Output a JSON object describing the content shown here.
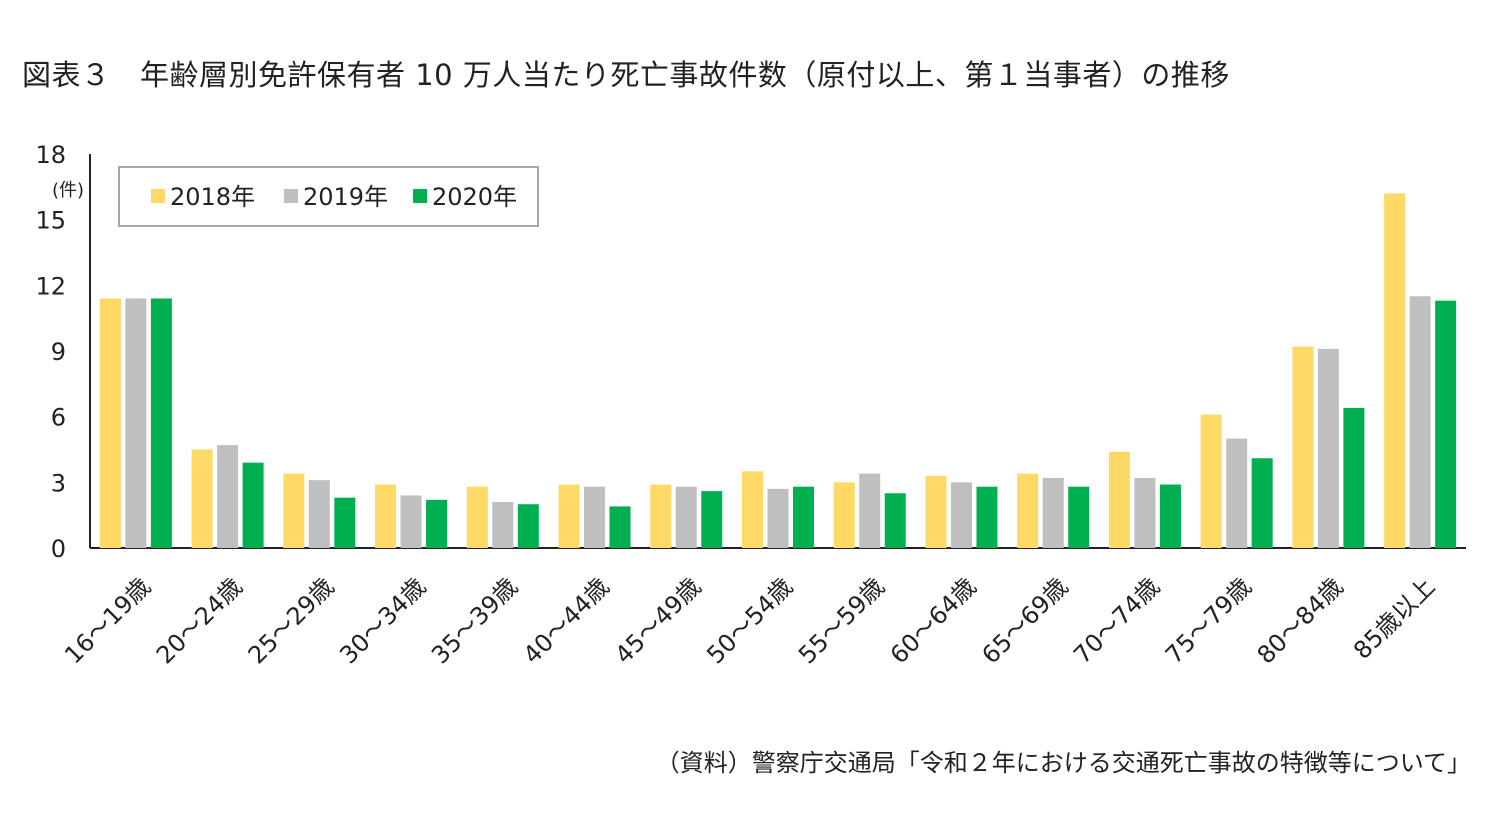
{
  "title": "図表３　年齢層別免許保有者 10 万人当たり死亡事故件数（原付以上、第１当事者）の推移",
  "source": "（資料）警察庁交通局「令和２年における交通死亡事故の特徴等について」",
  "chart_data": {
    "type": "bar",
    "ylabel": "(件)",
    "ylim": [
      0,
      18
    ],
    "yticks": [
      0,
      3,
      6,
      9,
      12,
      15,
      18
    ],
    "grid": false,
    "legend_position": "top-left",
    "categories": [
      "16～19歳",
      "20～24歳",
      "25～29歳",
      "30～34歳",
      "35～39歳",
      "40～44歳",
      "45～49歳",
      "50～54歳",
      "55～59歳",
      "60～64歳",
      "65～69歳",
      "70～74歳",
      "75～79歳",
      "80～84歳",
      "85歳以上"
    ],
    "series": [
      {
        "name": "2018年",
        "color": "#FFD966",
        "values": [
          11.4,
          4.5,
          3.4,
          2.9,
          2.8,
          2.9,
          2.9,
          3.5,
          3.0,
          3.3,
          3.4,
          4.4,
          6.1,
          9.2,
          16.2
        ]
      },
      {
        "name": "2019年",
        "color": "#BFBFBF",
        "values": [
          11.4,
          4.7,
          3.1,
          2.4,
          2.1,
          2.8,
          2.8,
          2.7,
          3.4,
          3.0,
          3.2,
          3.2,
          5.0,
          9.1,
          11.5
        ]
      },
      {
        "name": "2020年",
        "color": "#00B050",
        "values": [
          11.4,
          3.9,
          2.3,
          2.2,
          2.0,
          1.9,
          2.6,
          2.8,
          2.5,
          2.8,
          2.8,
          2.9,
          4.1,
          6.4,
          11.3
        ]
      }
    ]
  }
}
